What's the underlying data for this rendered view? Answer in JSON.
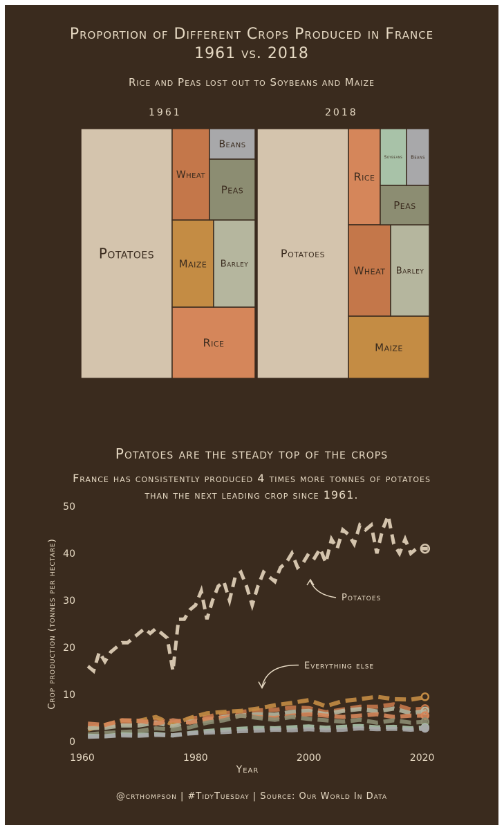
{
  "header": {
    "title_line1": "Proportion of Different Crops Produced in France",
    "title_line2": "1961 vs. 2018",
    "subtitle": "Rice and Peas lost out to Soybeans and Maize"
  },
  "treemaps": {
    "left_label": "1961",
    "right_label": "2018"
  },
  "line_section": {
    "title": "Potatoes are the steady top of the crops",
    "subtitle_line1": "France has consistently produced 4 times more tonnes of potatoes",
    "subtitle_line2": "than the next leading crop since 1961.",
    "annotation_potatoes": "Potatoes",
    "annotation_else": "Everything else"
  },
  "footer": "@crthompson | #TidyTuesday | Source: Our World In Data",
  "colors": {
    "background": "#3a2b1e",
    "text": "#e6d9c3",
    "potatoes": "#d4c4ad",
    "wheat": "#c4774a",
    "beans": "#a8a8aa",
    "peas": "#8c8d72",
    "maize": "#c48c44",
    "barley": "#b5b69e",
    "rice": "#d5865a",
    "soybeans": "#a8c2a8"
  },
  "chart_data": [
    {
      "type": "treemap",
      "title": "1961",
      "items": [
        {
          "name": "Potatoes",
          "value": 46.5,
          "color": "#d4c4ad"
        },
        {
          "name": "Rice",
          "value": 13.0,
          "color": "#d5865a"
        },
        {
          "name": "Maize",
          "value": 8.0,
          "color": "#c48c44"
        },
        {
          "name": "Barley",
          "value": 8.0,
          "color": "#b5b69e"
        },
        {
          "name": "Wheat",
          "value": 7.5,
          "color": "#c4774a"
        },
        {
          "name": "Peas",
          "value": 7.0,
          "color": "#8c8d72"
        },
        {
          "name": "Beans",
          "value": 3.5,
          "color": "#a8a8aa"
        }
      ]
    },
    {
      "type": "treemap",
      "title": "2018",
      "items": [
        {
          "name": "Potatoes",
          "value": 46.5,
          "color": "#d4c4ad"
        },
        {
          "name": "Maize",
          "value": 11.5,
          "color": "#c48c44"
        },
        {
          "name": "Rice",
          "value": 10.0,
          "color": "#d5865a"
        },
        {
          "name": "Wheat",
          "value": 9.5,
          "color": "#c4774a"
        },
        {
          "name": "Barley",
          "value": 9.5,
          "color": "#b5b69e"
        },
        {
          "name": "Peas",
          "value": 5.0,
          "color": "#8c8d72"
        },
        {
          "name": "Soybeans",
          "value": 4.0,
          "color": "#a8c2a8"
        },
        {
          "name": "Beans",
          "value": 2.5,
          "color": "#a8a8aa"
        }
      ]
    },
    {
      "type": "line",
      "xlabel": "Year",
      "ylabel": "Crop production (tonnes per hectare)",
      "xlim": [
        1960,
        2022
      ],
      "ylim": [
        0,
        50
      ],
      "xticks": [
        1960,
        1980,
        2000,
        2020
      ],
      "yticks": [
        0,
        10,
        20,
        30,
        40,
        50
      ],
      "series": [
        {
          "name": "Potatoes",
          "color": "#d4c4ad",
          "x": [
            1961,
            1962,
            1963,
            1964,
            1965,
            1966,
            1967,
            1968,
            1969,
            1970,
            1971,
            1972,
            1973,
            1974,
            1975,
            1976,
            1977,
            1978,
            1979,
            1980,
            1981,
            1982,
            1983,
            1984,
            1985,
            1986,
            1987,
            1988,
            1989,
            1990,
            1991,
            1992,
            1993,
            1994,
            1995,
            1996,
            1997,
            1998,
            1999,
            2000,
            2001,
            2002,
            2003,
            2004,
            2005,
            2006,
            2007,
            2008,
            2009,
            2010,
            2011,
            2012,
            2013,
            2014,
            2015,
            2016,
            2017,
            2018,
            2019,
            2020,
            2021
          ],
          "y": [
            16,
            15,
            19,
            17,
            19,
            20,
            21,
            21,
            22,
            23,
            24,
            23,
            24,
            23,
            22,
            15,
            26,
            26,
            28,
            29,
            32,
            26,
            30,
            33,
            34,
            30,
            35,
            36,
            33,
            29,
            33,
            36,
            35,
            34,
            37,
            38,
            40,
            37,
            38,
            40,
            39,
            41,
            38,
            43,
            41,
            45,
            44,
            42,
            46,
            45,
            46,
            40,
            45,
            48,
            42,
            40,
            43,
            40,
            41,
            41,
            41
          ]
        },
        {
          "name": "Wheat",
          "color": "#c4774a",
          "x": [
            1961,
            1964,
            1967,
            1970,
            1973,
            1976,
            1979,
            1982,
            1985,
            1988,
            1991,
            1994,
            1997,
            2000,
            2003,
            2006,
            2009,
            2012,
            2015,
            2018,
            2021
          ],
          "y": [
            3.0,
            3.3,
            3.8,
            3.9,
            4.6,
            4.0,
            4.9,
            5.2,
            6.0,
            6.3,
            6.6,
            6.7,
            7.2,
            7.1,
            6.2,
            6.8,
            7.4,
            7.4,
            7.9,
            6.8,
            7.0
          ]
        },
        {
          "name": "Maize",
          "color": "#c48c44",
          "x": [
            1961,
            1964,
            1967,
            1970,
            1973,
            1976,
            1979,
            1982,
            1985,
            1988,
            1991,
            1994,
            1997,
            2000,
            2003,
            2006,
            2009,
            2012,
            2015,
            2018,
            2021
          ],
          "y": [
            2.5,
            3.5,
            4.5,
            4.4,
            5.2,
            3.6,
            5.0,
            6.0,
            6.3,
            6.5,
            7.0,
            7.7,
            8.2,
            8.8,
            7.5,
            8.6,
            9.0,
            9.5,
            9.0,
            8.9,
            9.5
          ]
        },
        {
          "name": "Barley",
          "color": "#b5b69e",
          "x": [
            1961,
            1964,
            1967,
            1970,
            1973,
            1976,
            1979,
            1982,
            1985,
            1988,
            1991,
            1994,
            1997,
            2000,
            2003,
            2006,
            2009,
            2012,
            2015,
            2018,
            2021
          ],
          "y": [
            2.8,
            2.9,
            3.4,
            3.4,
            4.0,
            3.2,
            4.2,
            4.4,
            5.2,
            5.5,
            5.8,
            5.7,
            6.3,
            6.5,
            5.8,
            6.5,
            6.9,
            6.4,
            7.0,
            6.0,
            6.5
          ]
        },
        {
          "name": "Rice",
          "color": "#d5865a",
          "x": [
            1961,
            1964,
            1967,
            1970,
            1973,
            1976,
            1979,
            1982,
            1985,
            1988,
            1991,
            1994,
            1997,
            2000,
            2003,
            2006,
            2009,
            2012,
            2015,
            2018,
            2021
          ],
          "y": [
            3.8,
            3.5,
            4.5,
            4.4,
            3.8,
            4.5,
            4.0,
            4.8,
            5.0,
            5.5,
            5.2,
            5.0,
            5.5,
            5.8,
            5.5,
            5.2,
            5.5,
            5.8,
            5.2,
            5.5,
            5.5
          ]
        },
        {
          "name": "Peas",
          "color": "#8c8d72",
          "x": [
            1961,
            1964,
            1967,
            1970,
            1973,
            1976,
            1979,
            1982,
            1985,
            1988,
            1991,
            1994,
            1997,
            2000,
            2003,
            2006,
            2009,
            2012,
            2015,
            2018,
            2021
          ],
          "y": [
            1.5,
            1.8,
            2.0,
            2.2,
            2.8,
            2.5,
            3.0,
            4.0,
            4.5,
            5.5,
            5.0,
            4.6,
            5.2,
            4.8,
            4.5,
            4.2,
            4.6,
            4.0,
            4.5,
            4.0,
            4.2
          ]
        },
        {
          "name": "Soybeans",
          "color": "#a8c2a8",
          "x": [
            1961,
            1964,
            1967,
            1970,
            1973,
            1976,
            1979,
            1982,
            1985,
            1988,
            1991,
            1994,
            1997,
            2000,
            2003,
            2006,
            2009,
            2012,
            2015,
            2018,
            2021
          ],
          "y": [
            1.2,
            1.1,
            1.5,
            1.4,
            1.6,
            1.3,
            1.8,
            2.2,
            2.5,
            2.7,
            2.9,
            2.8,
            3.0,
            3.2,
            2.9,
            3.1,
            3.3,
            3.0,
            3.1,
            2.8,
            3.0
          ]
        },
        {
          "name": "Beans",
          "color": "#a8a8aa",
          "x": [
            1961,
            1964,
            1967,
            1970,
            1973,
            1976,
            1979,
            1982,
            1985,
            1988,
            1991,
            1994,
            1997,
            2000,
            2003,
            2006,
            2009,
            2012,
            2015,
            2018,
            2021
          ],
          "y": [
            1.0,
            1.1,
            1.3,
            1.2,
            1.4,
            1.3,
            1.7,
            1.9,
            2.0,
            2.2,
            2.3,
            2.5,
            2.4,
            2.6,
            2.4,
            2.5,
            2.8,
            2.6,
            2.7,
            2.5,
            2.8
          ]
        }
      ]
    }
  ]
}
